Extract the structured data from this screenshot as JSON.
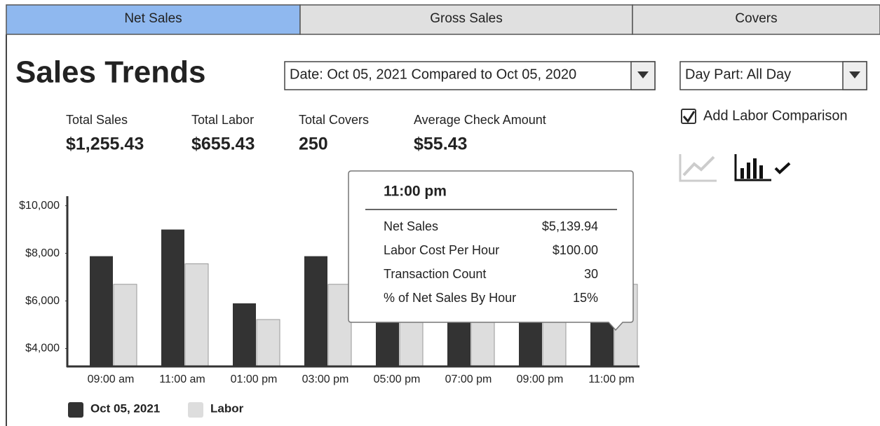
{
  "tabs": [
    {
      "label": "Net Sales",
      "active": true
    },
    {
      "label": "Gross Sales",
      "active": false
    },
    {
      "label": "Covers",
      "active": false
    }
  ],
  "title": "Sales Trends",
  "date_filter": "Date: Oct 05, 2021 Compared to Oct 05, 2020",
  "day_part_filter": "Day Part: All Day",
  "labor_comparison": {
    "label": "Add Labor Comparison",
    "checked": true
  },
  "stats": [
    {
      "label": "Total Sales",
      "value": "$1,255.43"
    },
    {
      "label": "Total Labor",
      "value": "$655.43"
    },
    {
      "label": "Total Covers",
      "value": "250"
    },
    {
      "label": "Average Check Amount",
      "value": "$55.43"
    }
  ],
  "chart_data": {
    "type": "bar",
    "categories": [
      "09:00 am",
      "11:00 am",
      "01:00 pm",
      "03:00 pm",
      "05:00 pm",
      "07:00 pm",
      "09:00 pm",
      "11:00 pm"
    ],
    "series": [
      {
        "name": "Oct 05, 2021",
        "color": "#333333",
        "values": [
          7880,
          9000,
          5900,
          7880,
          7000,
          7000,
          7000,
          5140
        ]
      },
      {
        "name": "Labor",
        "color": "#dddddd",
        "values": [
          6700,
          7560,
          5220,
          6700,
          6700,
          6700,
          6700,
          6700
        ]
      }
    ],
    "ylim": [
      3250,
      10400
    ],
    "yticks": [
      {
        "value": 4000,
        "label": "$4,000"
      },
      {
        "value": 6000,
        "label": "$6,000"
      },
      {
        "value": 8000,
        "label": "$8,000"
      },
      {
        "value": 10000,
        "label": "$10,000"
      }
    ]
  },
  "tooltip": {
    "title": "11:00 pm",
    "rows": [
      {
        "label": "Net Sales",
        "value": "$5,139.94"
      },
      {
        "label": "Labor Cost Per Hour",
        "value": "$100.00"
      },
      {
        "label": "Transaction Count",
        "value": "30"
      },
      {
        "label": "% of Net Sales By Hour",
        "value": "15%"
      }
    ]
  }
}
